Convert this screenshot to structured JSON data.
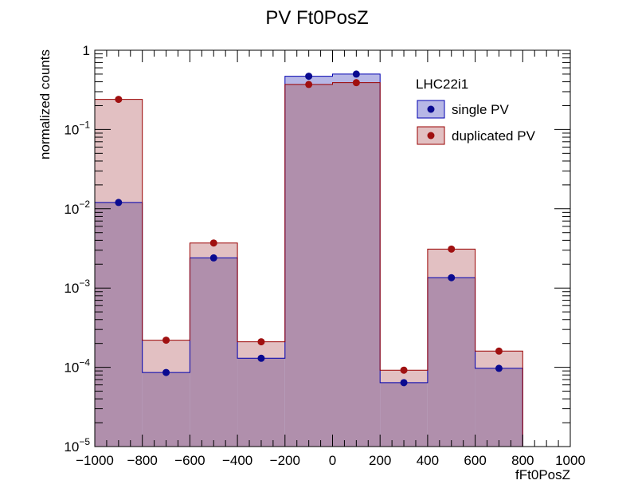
{
  "chart_data": {
    "type": "bar",
    "title": "PV Ft0PosZ",
    "xlabel": "fFt0PosZ",
    "ylabel": "normalized counts",
    "xlim": [
      -1000,
      1000
    ],
    "ylim": [
      1e-05,
      1
    ],
    "yscale": "log",
    "x_ticks": [
      -1000,
      -800,
      -600,
      -400,
      -200,
      0,
      200,
      400,
      600,
      800,
      1000
    ],
    "x_tick_labels": [
      "−1000",
      "−800",
      "−600",
      "−400",
      "−200",
      "0",
      "200",
      "400",
      "600",
      "800",
      "1000"
    ],
    "y_tick_labels": [
      {
        "value": 1,
        "base": "1",
        "exp": ""
      },
      {
        "value": 0.1,
        "base": "10",
        "exp": "−1"
      },
      {
        "value": 0.01,
        "base": "10",
        "exp": "−2"
      },
      {
        "value": 0.001,
        "base": "10",
        "exp": "−3"
      },
      {
        "value": 0.0001,
        "base": "10",
        "exp": "−4"
      },
      {
        "value": 1e-05,
        "base": "10",
        "exp": "−5"
      }
    ],
    "bin_edges": [
      -1000,
      -800,
      -600,
      -400,
      -200,
      0,
      200,
      400,
      600,
      800,
      1000
    ],
    "legend": {
      "title": "LHC22i1",
      "placement": "top-right"
    },
    "series": [
      {
        "name": "duplicated PV",
        "values": [
          0.24,
          0.00022,
          0.0037,
          0.00021,
          0.37,
          0.39,
          9.2e-05,
          0.0031,
          0.00016,
          null
        ],
        "fill": "#e2c0c2",
        "line": "#9a0000",
        "marker": "#a01010"
      },
      {
        "name": "single PV",
        "values": [
          0.012,
          8.6e-05,
          0.0024,
          0.00013,
          0.47,
          0.5,
          6.4e-05,
          0.00135,
          9.7e-05,
          null
        ],
        "fill": "#b7b7e6",
        "line": "#0000b0",
        "marker": "#0a0a90"
      }
    ],
    "overlap_fill": "#b08fac",
    "grid": false
  }
}
